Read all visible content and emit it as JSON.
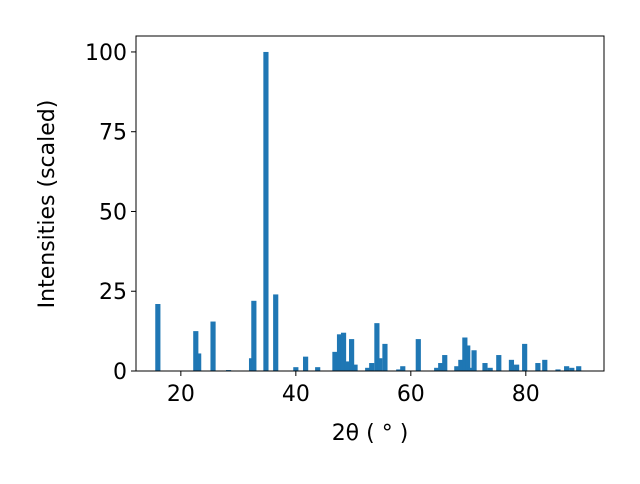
{
  "chart_data": {
    "type": "bar",
    "xlabel": "2θ ( ° )",
    "ylabel": "Intensities (scaled)",
    "x": [
      16.0,
      22.6,
      23.1,
      25.6,
      28.3,
      32.3,
      32.7,
      34.8,
      36.5,
      40.0,
      41.7,
      43.8,
      46.8,
      47.6,
      48.3,
      48.9,
      49.7,
      50.3,
      52.5,
      53.2,
      54.1,
      54.6,
      55.5,
      57.9,
      58.6,
      61.3,
      64.5,
      65.2,
      65.9,
      68.0,
      68.7,
      69.4,
      69.9,
      70.3,
      71.0,
      72.9,
      73.8,
      75.3,
      77.5,
      78.4,
      79.8,
      82.1,
      83.3,
      85.6,
      87.1,
      88.0,
      89.2
    ],
    "values": [
      21,
      12.5,
      5.5,
      15.5,
      0.3,
      4,
      22,
      100,
      24,
      1.2,
      4.5,
      1.2,
      6,
      11.5,
      12,
      3,
      10,
      2,
      1,
      2.5,
      15,
      4,
      8.5,
      0.5,
      1.5,
      10,
      1,
      2.5,
      5,
      1.5,
      3.5,
      10.5,
      8,
      1,
      6.5,
      2.5,
      1,
      5,
      3.5,
      2,
      8.5,
      2.5,
      3.5,
      0.5,
      1.5,
      1,
      1.5
    ],
    "color": "#1f77b4",
    "xlim": [
      12.2,
      93.6
    ],
    "ylim": [
      0,
      105
    ],
    "xticks": [
      20,
      40,
      60,
      80
    ],
    "yticks": [
      0,
      25,
      50,
      75,
      100
    ]
  }
}
